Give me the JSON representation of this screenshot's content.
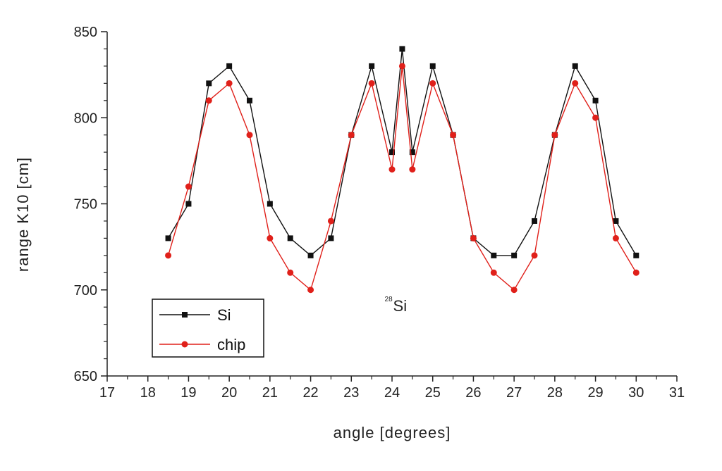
{
  "chart_data": {
    "type": "line",
    "title": "",
    "xlabel": "angle [degrees]",
    "ylabel": "range K10 [cm]",
    "xlim": [
      17,
      31
    ],
    "ylim": [
      650,
      850
    ],
    "xticks": [
      17,
      18,
      19,
      20,
      21,
      22,
      23,
      24,
      25,
      26,
      27,
      28,
      29,
      30,
      31
    ],
    "yticks": [
      650,
      700,
      750,
      800,
      850
    ],
    "grid": false,
    "legend": {
      "placement": "bottom-left"
    },
    "annotation": {
      "sup": "28",
      "text": "Si",
      "x": 24.2,
      "y": 690
    },
    "series": [
      {
        "name": "Si",
        "color": "#111111",
        "marker": "square",
        "x": [
          18.5,
          19,
          19.5,
          20,
          20.5,
          21,
          21.5,
          22,
          22.5,
          23,
          23.5,
          24,
          24.25,
          24.5,
          25,
          25.5,
          26,
          26.5,
          27,
          27.5,
          28,
          28.5,
          29,
          29.5,
          30
        ],
        "y": [
          730,
          750,
          820,
          830,
          810,
          750,
          730,
          720,
          730,
          790,
          830,
          780,
          840,
          780,
          830,
          790,
          730,
          720,
          720,
          740,
          790,
          830,
          810,
          740,
          720
        ]
      },
      {
        "name": "chip",
        "color": "#e0201a",
        "marker": "circle",
        "x": [
          18.5,
          19,
          19.5,
          20,
          20.5,
          21,
          21.5,
          22,
          22.5,
          23,
          23.5,
          24,
          24.25,
          24.5,
          25,
          25.5,
          26,
          26.5,
          27,
          27.5,
          28,
          28.5,
          29,
          29.5,
          30
        ],
        "y": [
          720,
          760,
          810,
          820,
          790,
          730,
          710,
          700,
          740,
          790,
          820,
          770,
          830,
          770,
          820,
          790,
          730,
          710,
          700,
          720,
          790,
          820,
          800,
          730,
          710
        ]
      }
    ]
  }
}
